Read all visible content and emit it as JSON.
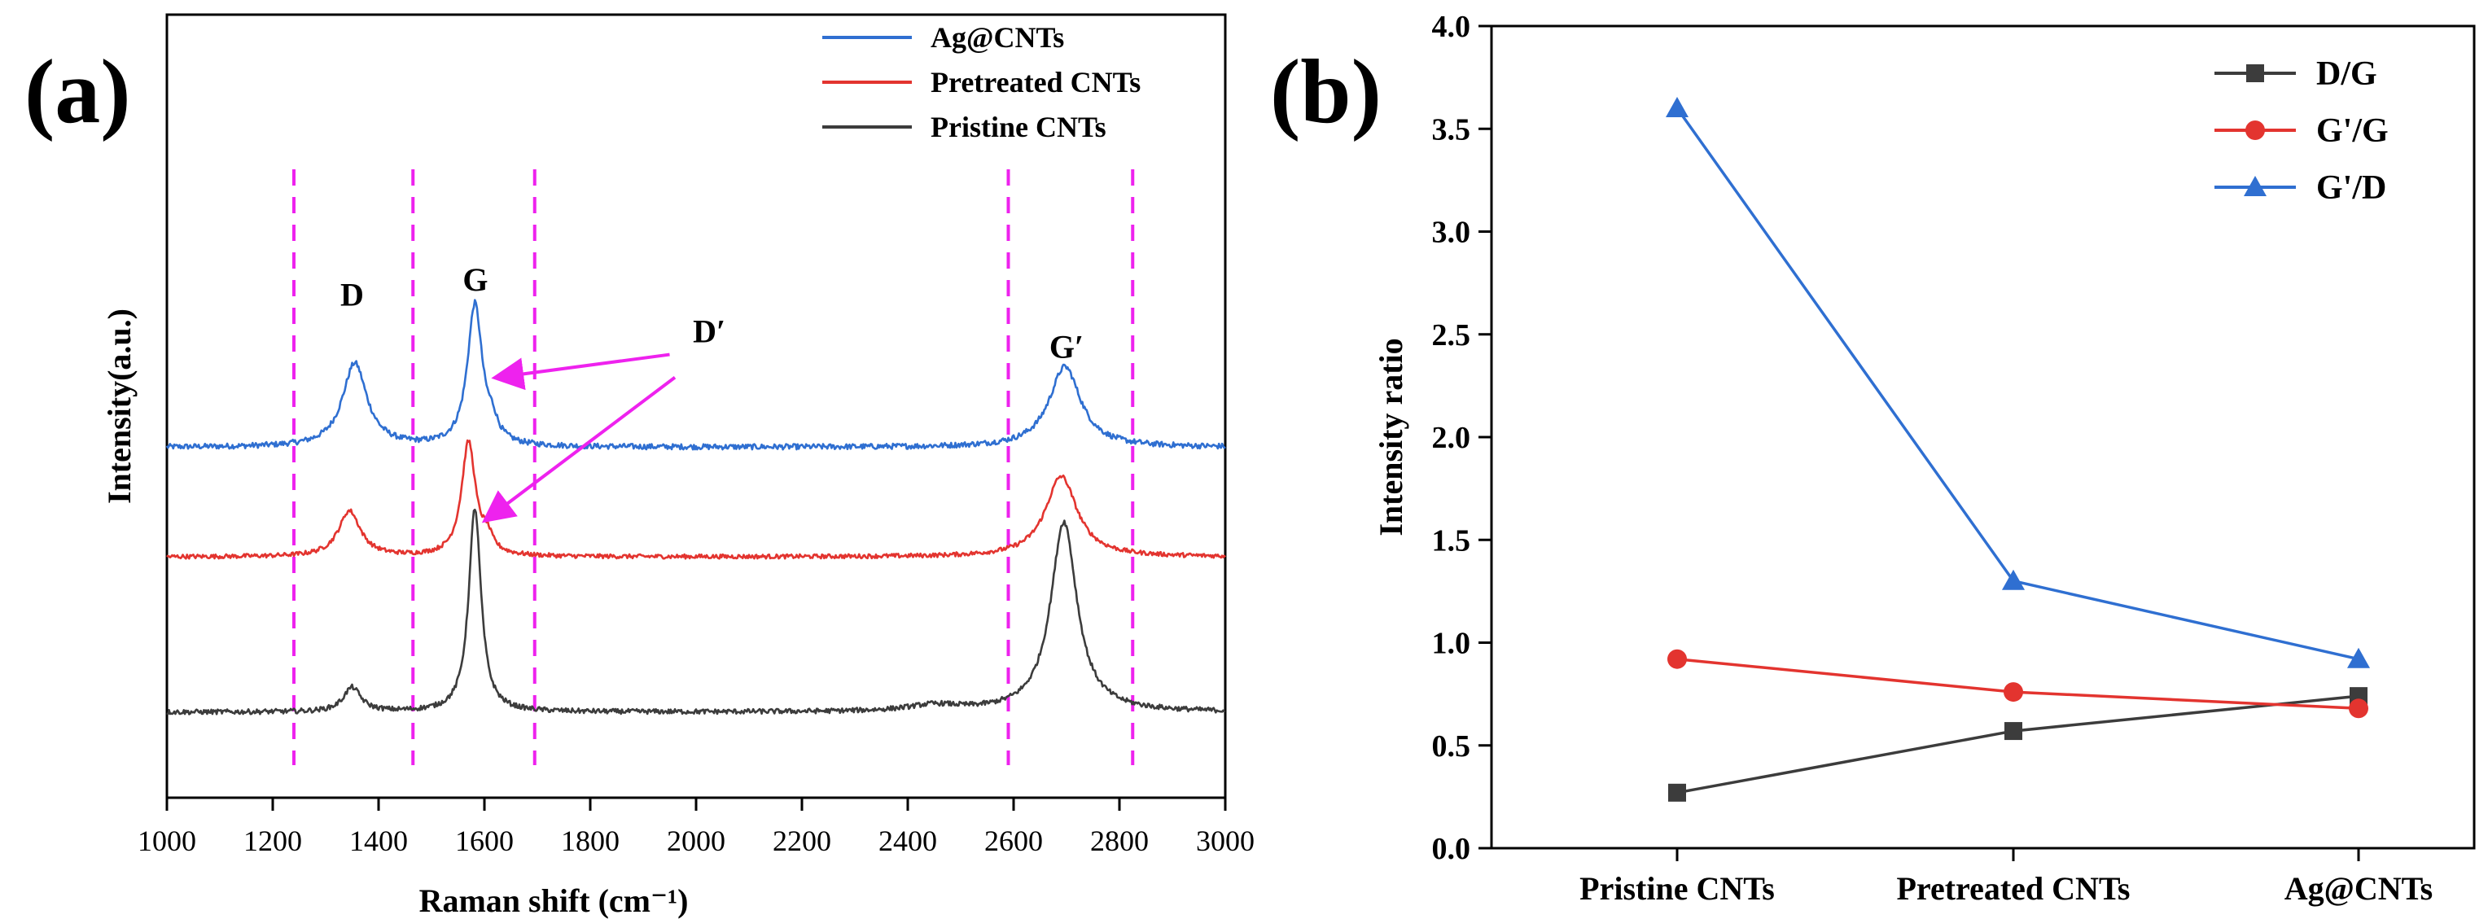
{
  "panel_labels": {
    "a": "(a)",
    "b": "(b)"
  },
  "colors": {
    "blue": "#2f6fd1",
    "red": "#e3342f",
    "black": "#3c3c3c",
    "magenta": "#ee22ee",
    "axis": "#000000"
  },
  "chart_data": [
    {
      "id": "a",
      "type": "line",
      "title": "",
      "xlabel": "Raman shift (cm⁻¹)",
      "ylabel": "Intensity(a.u.)",
      "xlim": [
        1000,
        3000
      ],
      "xticks": [
        1000,
        1200,
        1400,
        1600,
        1800,
        2000,
        2200,
        2400,
        2600,
        2800,
        3000
      ],
      "y_ticks_shown": false,
      "legend": {
        "placement": "top-right"
      },
      "series": [
        {
          "name": "Ag@CNTs",
          "color": "#2f6fd1",
          "baseline": 1.74,
          "noise": 0.018,
          "peaks": [
            [
              1355,
              0.55,
              28
            ],
            [
              1582,
              0.93,
              17
            ],
            [
              1615,
              0.1,
              12
            ],
            [
              2697,
              0.53,
              36
            ]
          ]
        },
        {
          "name": "Pretreated CNTs",
          "color": "#e3342f",
          "baseline": 1.02,
          "noise": 0.014,
          "peaks": [
            [
              1345,
              0.3,
              25
            ],
            [
              1570,
              0.75,
              16
            ],
            [
              1605,
              0.1,
              12
            ],
            [
              2690,
              0.53,
              36
            ]
          ]
        },
        {
          "name": "Pristine CNTs",
          "color": "#3c3c3c",
          "baseline": 0.0,
          "noise": 0.016,
          "peaks": [
            [
              1350,
              0.16,
              20
            ],
            [
              1582,
              1.34,
              14
            ],
            [
              2450,
              0.04,
              60
            ],
            [
              2695,
              1.25,
              30
            ]
          ]
        }
      ],
      "vlines": [
        1240,
        1465,
        1695,
        2590,
        2825
      ],
      "annotations": [
        {
          "text": "D",
          "x": 1350,
          "y": 2.67
        },
        {
          "text": "G",
          "x": 1583,
          "y": 2.77
        },
        {
          "text": "G′",
          "x": 2700,
          "y": 2.33
        },
        {
          "text": "D′",
          "x": 2025,
          "y": 2.43
        }
      ],
      "arrows": [
        {
          "from": [
            1950,
            2.35
          ],
          "to": [
            1625,
            2.2
          ]
        },
        {
          "from": [
            1960,
            2.2
          ],
          "to": [
            1605,
            1.27
          ]
        }
      ]
    },
    {
      "id": "b",
      "type": "line",
      "title": "",
      "xlabel": "",
      "ylabel": "Intensity ratio",
      "categories": [
        "Pristine CNTs",
        "Pretreated CNTs",
        "Ag@CNTs"
      ],
      "ylim": [
        0.0,
        4.0
      ],
      "yticks": [
        0.0,
        0.5,
        1.0,
        1.5,
        2.0,
        2.5,
        3.0,
        3.5,
        4.0
      ],
      "legend": {
        "placement": "top-right"
      },
      "series": [
        {
          "name": "D/G",
          "marker": "square",
          "color": "#3c3c3c",
          "values": [
            0.27,
            0.57,
            0.74
          ]
        },
        {
          "name": "G'/G",
          "marker": "circle",
          "color": "#e3342f",
          "values": [
            0.92,
            0.76,
            0.68
          ]
        },
        {
          "name": "G'/D",
          "marker": "triangle",
          "color": "#2f6fd1",
          "values": [
            3.6,
            1.3,
            0.92
          ]
        }
      ]
    }
  ]
}
